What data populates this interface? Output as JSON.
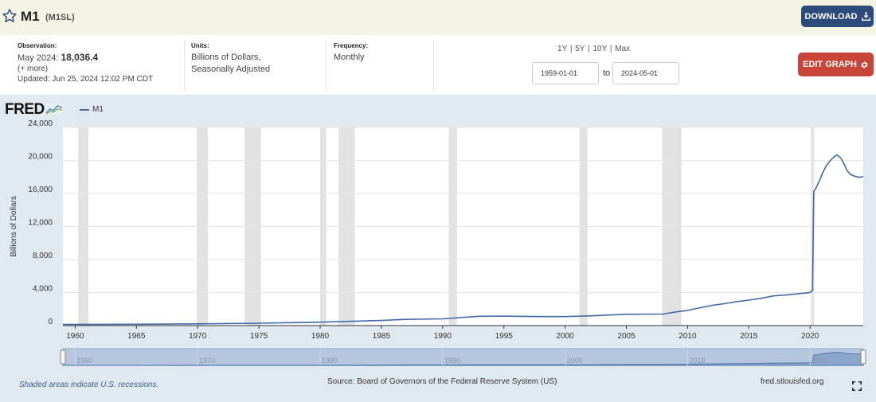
{
  "header": {
    "title": "M1",
    "series_id": "(M1SL)",
    "download_label": "DOWNLOAD",
    "star_icon": "star-outline-icon",
    "download_icon": "download-icon"
  },
  "info": {
    "observation_label": "Observation:",
    "observation_period": "May 2024:",
    "observation_value": "18,036.4",
    "more_link": "(+ more)",
    "updated": "Updated: Jun 25, 2024 12:02 PM CDT",
    "units_label": "Units:",
    "units_line1": "Billions of Dollars,",
    "units_line2": "Seasonally Adjusted",
    "frequency_label": "Frequency:",
    "frequency_value": "Monthly"
  },
  "controls": {
    "range_1y": "1Y",
    "range_5y": "5Y",
    "range_10y": "10Y",
    "range_max": "Max",
    "separator": "|",
    "start_date": "1959-01-01",
    "to_label": "to",
    "end_date": "2024-05-01",
    "edit_graph_label": "EDIT GRAPH",
    "edit_icon": "gear-icon"
  },
  "chart_data": {
    "type": "line",
    "logo": "FRED",
    "legend": [
      "M1"
    ],
    "ylabel": "Billions of Dollars",
    "xlabel": "",
    "xlim": [
      1959.0,
      2024.34
    ],
    "ylim": [
      0,
      24000
    ],
    "y_ticks": [
      0,
      4000,
      8000,
      12000,
      16000,
      20000,
      24000
    ],
    "y_tick_labels": [
      "0",
      "4,000",
      "8,000",
      "12,000",
      "16,000",
      "20,000",
      "24,000"
    ],
    "x_ticks": [
      1960,
      1965,
      1970,
      1975,
      1980,
      1985,
      1990,
      1995,
      2000,
      2005,
      2010,
      2015,
      2020
    ],
    "x_tick_labels": [
      "1960",
      "1965",
      "1970",
      "1975",
      "1980",
      "1985",
      "1990",
      "1995",
      "2000",
      "2005",
      "2010",
      "2015",
      "2020"
    ],
    "navigator_ticks": [
      "1960",
      "1970",
      "1980",
      "1990",
      "2000",
      "2010",
      "2020"
    ],
    "recessions": [
      [
        1960.25,
        1961.08
      ],
      [
        1969.92,
        1970.83
      ],
      [
        1973.83,
        1975.17
      ],
      [
        1980.0,
        1980.5
      ],
      [
        1981.5,
        1982.83
      ],
      [
        1990.5,
        1991.17
      ],
      [
        2001.17,
        2001.83
      ],
      [
        2007.92,
        2009.5
      ],
      [
        2020.08,
        2020.33
      ]
    ],
    "series": [
      {
        "name": "M1",
        "color": "#4169a8",
        "x": [
          1959,
          1965,
          1970,
          1975,
          1980,
          1985,
          1987,
          1990,
          1993,
          1995,
          1998,
          2000,
          2002,
          2005,
          2008,
          2009,
          2010,
          2011,
          2012,
          2013,
          2014,
          2015,
          2016,
          2017,
          2018,
          2019,
          2020.0,
          2020.2,
          2020.3,
          2020.5,
          2020.8,
          2021.0,
          2021.3,
          2021.6,
          2022.0,
          2022.2,
          2022.5,
          2022.8,
          2023.0,
          2023.3,
          2023.6,
          2024.0,
          2024.34
        ],
        "values": [
          140,
          165,
          215,
          290,
          410,
          620,
          750,
          820,
          1130,
          1140,
          1090,
          1090,
          1180,
          1370,
          1400,
          1650,
          1830,
          2160,
          2450,
          2650,
          2900,
          3080,
          3300,
          3600,
          3700,
          3850,
          4000,
          4250,
          16200,
          16700,
          17700,
          18400,
          19300,
          19900,
          20500,
          20650,
          20300,
          19500,
          18800,
          18300,
          18100,
          17950,
          18036
        ]
      }
    ]
  },
  "footer": {
    "recession_note": "Shaded areas indicate U.S. recessions.",
    "source": "Source: Board of Governors of the Federal Reserve System (US)",
    "site": "fred.stlouisfed.org",
    "fullscreen_icon": "fullscreen-icon"
  }
}
